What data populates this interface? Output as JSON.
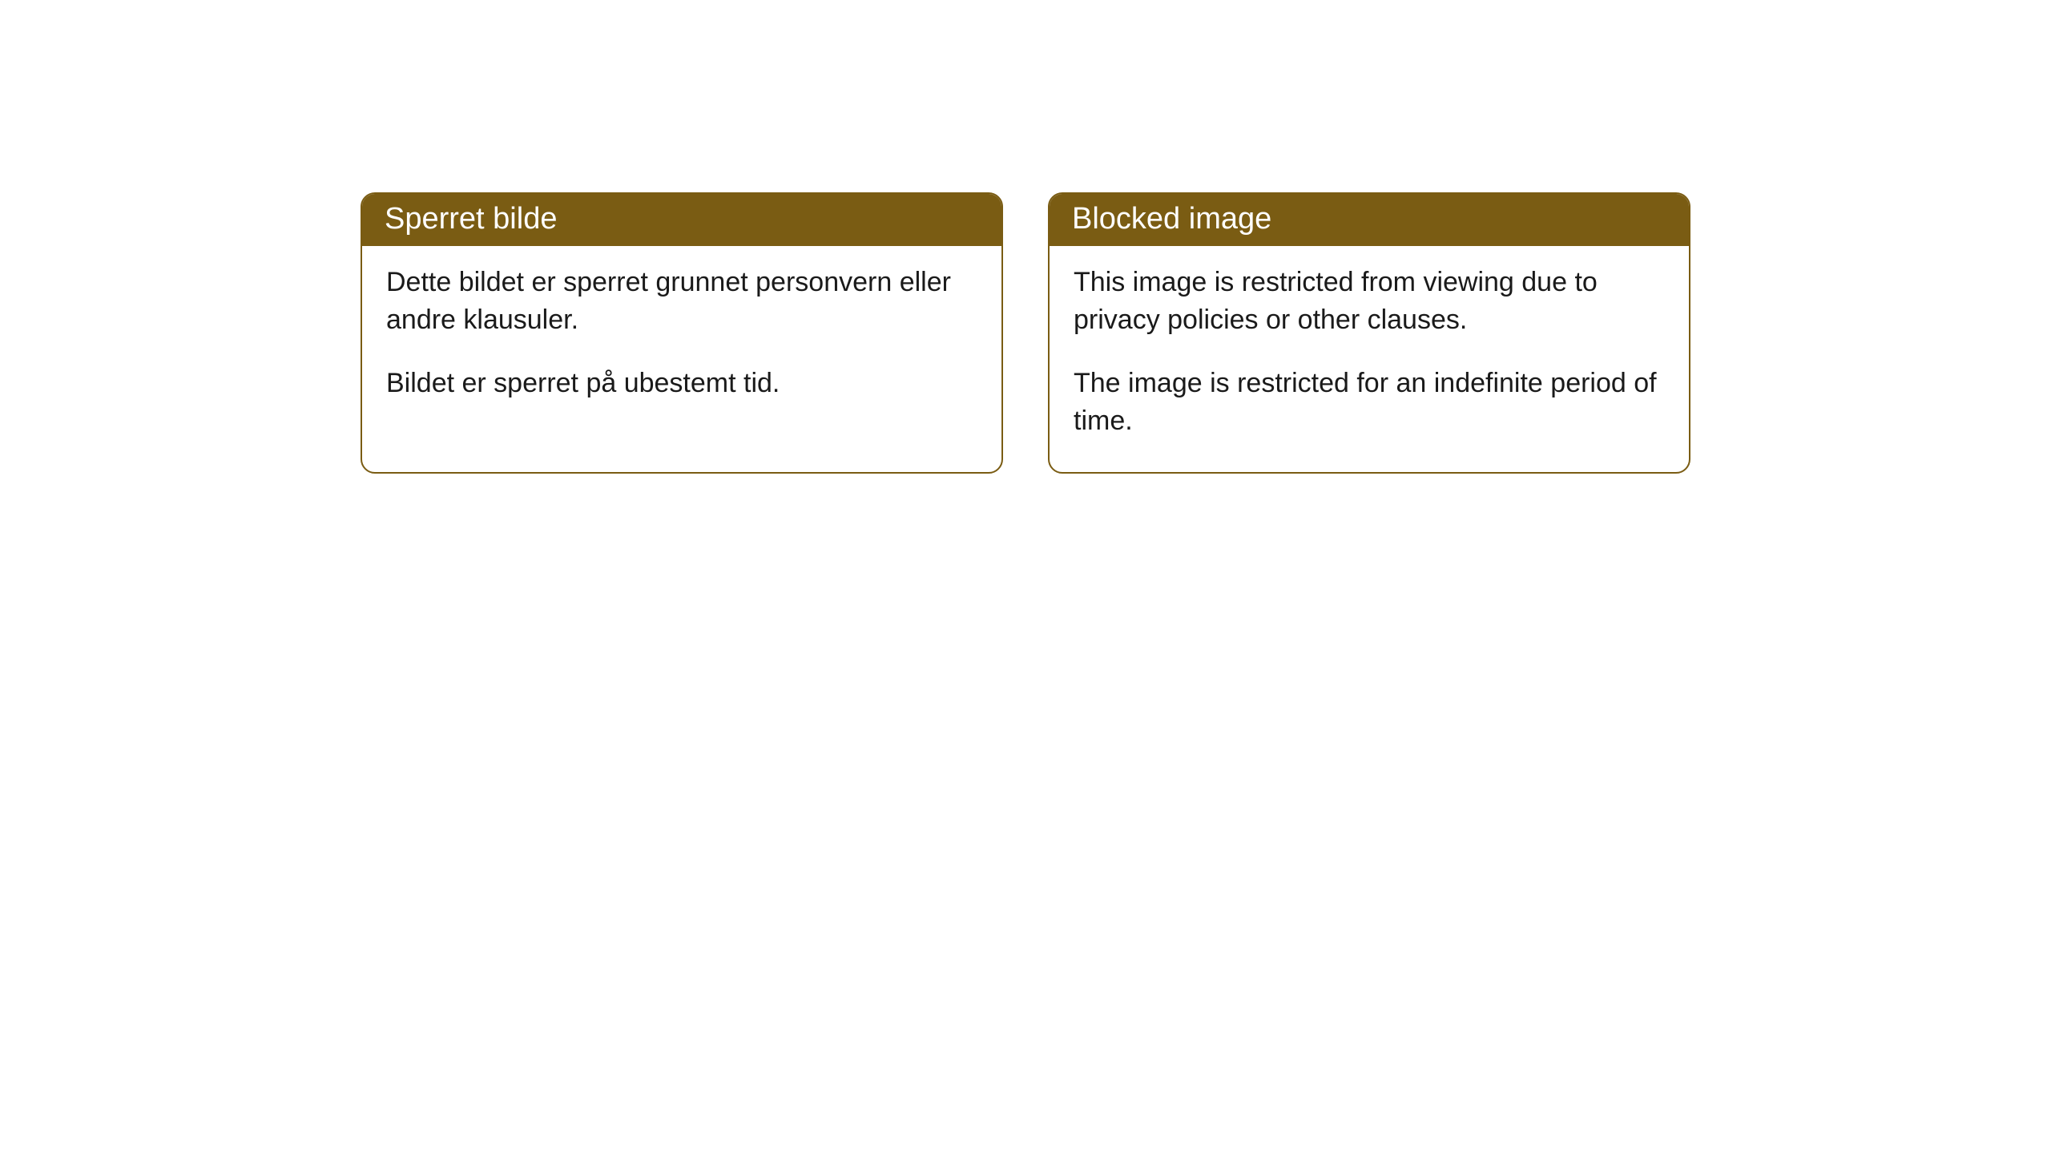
{
  "cards": [
    {
      "title": "Sperret bilde",
      "paragraph1": "Dette bildet er sperret grunnet personvern eller andre klausuler.",
      "paragraph2": "Bildet er sperret på ubestemt tid."
    },
    {
      "title": "Blocked image",
      "paragraph1": "This image is restricted from viewing due to privacy policies or other clauses.",
      "paragraph2": "The image is restricted for an indefinite period of time."
    }
  ],
  "styling": {
    "header_bg_color": "#7a5c13",
    "header_text_color": "#ffffff",
    "border_color": "#7a5c13",
    "body_bg_color": "#ffffff",
    "body_text_color": "#1a1a1a",
    "border_radius": 18,
    "header_fontsize": 38,
    "body_fontsize": 34
  }
}
